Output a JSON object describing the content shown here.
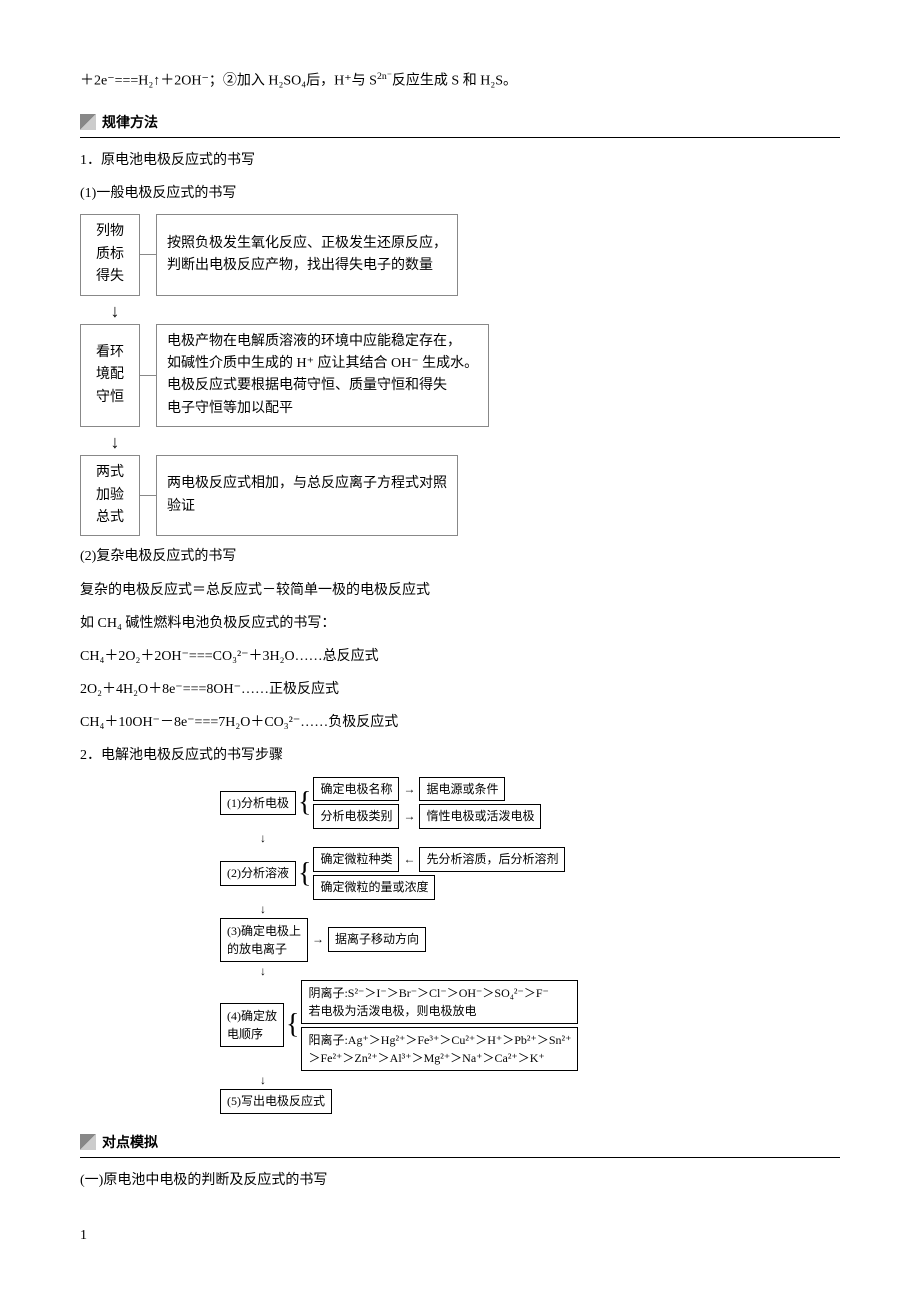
{
  "topline": {
    "prefix": "＋2e⁻===H₂↑＋2OH⁻；②加入 H₂SO₄后，H⁺与 S",
    "sup": "2n⁻",
    "suffix": "反应生成 S 和 H₂S。"
  },
  "section1": {
    "title": "规律方法",
    "h1": "1．原电池电极反应式的书写",
    "sub1": "(1)一般电极反应式的书写",
    "flow": {
      "step1_left": [
        "列物",
        "质标",
        "得失"
      ],
      "step1_right": "按照负极发生氧化反应、正极发生还原反应，\n判断出电极反应产物，找出得失电子的数量",
      "step2_left": [
        "看环",
        "境配",
        "守恒"
      ],
      "step2_right": "电极产物在电解质溶液的环境中应能稳定存在，\n如碱性介质中生成的 H⁺ 应让其结合 OH⁻ 生成水。\n电极反应式要根据电荷守恒、质量守恒和得失\n电子守恒等加以配平",
      "step3_left": [
        "两式",
        "加验",
        "总式"
      ],
      "step3_right": "两电极反应式相加，与总反应离子方程式对照\n验证"
    },
    "sub2": "(2)复杂电极反应式的书写",
    "p1": "复杂的电极反应式＝总反应式－较简单一极的电极反应式",
    "p2": "如 CH₄ 碱性燃料电池负极反应式的书写：",
    "eq1": "CH₄＋2O₂＋2OH⁻===CO₃²⁻＋3H₂O……总反应式",
    "eq2": "2O₂＋4H₂O＋8e⁻===8OH⁻……正极反应式",
    "eq3": "CH₄＋10OH⁻－8e⁻===7H₂O＋CO₃²⁻……负极反应式",
    "h2": "2．电解池电极反应式的书写步骤"
  },
  "diagram2": {
    "s1": "(1)分析电极",
    "s1a": "确定电极名称",
    "s1a2": "据电源或条件",
    "s1b": "分析电极类别",
    "s1b2": "惰性电极或活泼电极",
    "s2": "(2)分析溶液",
    "s2a": "确定微粒种类",
    "s2a2": "先分析溶质，后分析溶剂",
    "s2b": "确定微粒的量或浓度",
    "s3": "(3)确定电极上\n的放电离子",
    "s3a": "据离子移动方向",
    "s4": "(4)确定放\n电顺序",
    "s4a": "阴离子:S²⁻＞I⁻＞Br⁻＞Cl⁻＞OH⁻＞SO₄²⁻＞F⁻\n若电极为活泼电极，则电极放电",
    "s4b": "阳离子:Ag⁺＞Hg²⁺＞Fe³⁺＞Cu²⁺＞H⁺＞Pb²⁺＞Sn²⁺\n＞Fe²⁺＞Zn²⁺＞Al³⁺＞Mg²⁺＞Na⁺＞Ca²⁺＞K⁺",
    "s5": "(5)写出电极反应式"
  },
  "section2": {
    "title": "对点模拟",
    "p1": "(一)原电池中电极的判断及反应式的书写"
  },
  "page": "1"
}
